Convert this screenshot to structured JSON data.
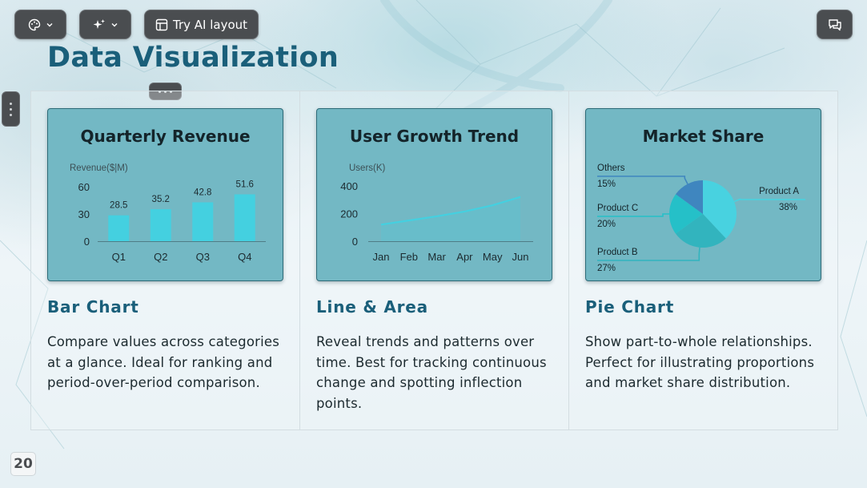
{
  "toolbar": {
    "ai_layout_label": "Try AI layout"
  },
  "page": {
    "title": "Data Visualization",
    "number": "20"
  },
  "colors": {
    "title": "#1a5f7a",
    "card_bg": "#73b8c4",
    "accent": "#44d0e0",
    "toolbar": "#4a4d50"
  },
  "icons": [
    "palette-icon",
    "sparkle-icon",
    "chevron-down-icon",
    "layout-icon",
    "chat-icon",
    "drag-handle-icon"
  ],
  "sections": [
    {
      "heading": "Bar Chart",
      "description": "Compare values across categories at a glance. Ideal for ranking and period-over-period comparison."
    },
    {
      "heading": "Line & Area",
      "description": "Reveal trends and patterns over time. Best for tracking continuous change and spotting inflection points."
    },
    {
      "heading": "Pie Chart",
      "description": "Show part-to-whole relationships. Perfect for illustrating proportions and market share distribution."
    }
  ],
  "chart_data": [
    {
      "type": "bar",
      "title": "Quarterly Revenue",
      "ylabel": "Revenue($|M)",
      "categories": [
        "Q1",
        "Q2",
        "Q3",
        "Q4"
      ],
      "values": [
        28.5,
        35.2,
        42.8,
        51.6
      ],
      "yticks": [
        0,
        30,
        60
      ],
      "ylim": [
        0,
        60
      ],
      "grid": false,
      "color": "#44d0e0"
    },
    {
      "type": "area",
      "title": "User Growth Trend",
      "ylabel": "Users(K)",
      "categories": [
        "Jan",
        "Feb",
        "Mar",
        "Apr",
        "May",
        "Jun"
      ],
      "values": [
        120,
        150,
        180,
        215,
        260,
        320
      ],
      "yticks": [
        0,
        200,
        400
      ],
      "ylim": [
        0,
        400
      ],
      "grid": false,
      "color": "#44d0e0"
    },
    {
      "type": "pie",
      "title": "Market Share",
      "slices": [
        {
          "label": "Product A",
          "pct": "38%",
          "value": 38,
          "color": "#48d2e0"
        },
        {
          "label": "Product B",
          "pct": "27%",
          "value": 27,
          "color": "#32b4be"
        },
        {
          "label": "Product C",
          "pct": "20%",
          "value": 20,
          "color": "#25c0c8"
        },
        {
          "label": "Others",
          "pct": "15%",
          "value": 15,
          "color": "#3f86bf"
        }
      ]
    }
  ]
}
